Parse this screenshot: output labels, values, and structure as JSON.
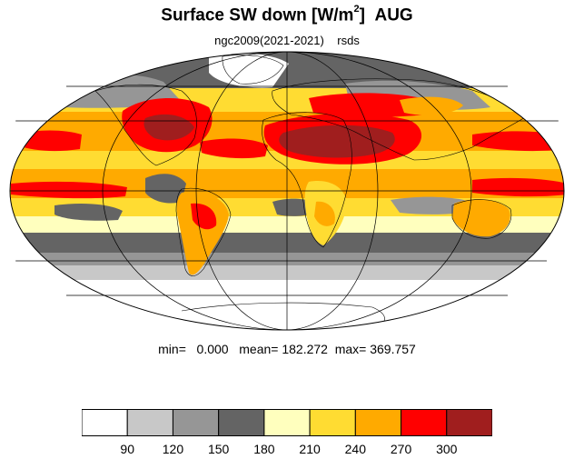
{
  "title": {
    "main": "Surface SW down [W/m",
    "sup": "2",
    "close": "]",
    "month": "AUG"
  },
  "subtitle": "ngc2009(2021-2021)    rsds",
  "stats": {
    "text": "min=   0.000   mean= 182.272  max= 369.757"
  },
  "colorbar": {
    "colors": [
      "#ffffff",
      "#c8c8c8",
      "#969696",
      "#646464",
      "#ffffbe",
      "#ffdc32",
      "#ffaa00",
      "#ff0000",
      "#a01e1e"
    ],
    "ticks": [
      "90",
      "120",
      "150",
      "180",
      "210",
      "240",
      "270",
      "300"
    ]
  }
}
